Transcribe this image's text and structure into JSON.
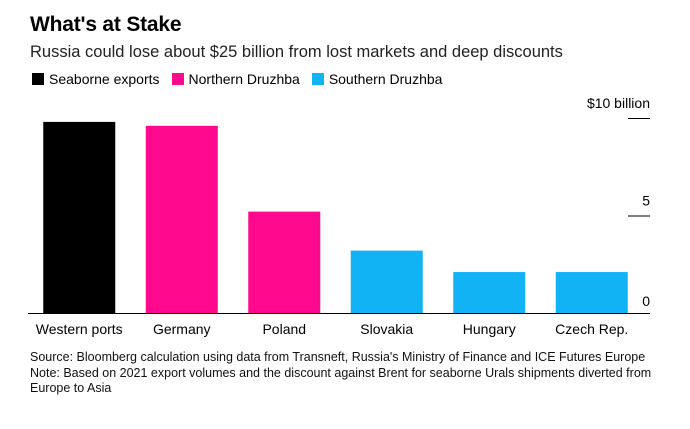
{
  "header": {
    "title": "What's at Stake",
    "subtitle": "Russia could lose about $25 billion from lost markets and deep discounts"
  },
  "legend": [
    {
      "label": "Seaborne exports",
      "color": "#000000"
    },
    {
      "label": "Northern Druzhba",
      "color": "#ff0a8f"
    },
    {
      "label": "Southern Druzhba",
      "color": "#12b3f5"
    }
  ],
  "chart_data": {
    "type": "bar",
    "title": "What's at Stake",
    "subtitle": "Russia could lose about $25 billion from lost markets and deep discounts",
    "categories": [
      "Western ports",
      "Germany",
      "Poland",
      "Slovakia",
      "Hungary",
      "Czech Rep."
    ],
    "values": [
      9.8,
      9.6,
      5.2,
      3.2,
      2.1,
      2.1
    ],
    "series_for_category": [
      "Seaborne exports",
      "Northern Druzhba",
      "Northern Druzhba",
      "Southern Druzhba",
      "Southern Druzhba",
      "Southern Druzhba"
    ],
    "colors": [
      "#000000",
      "#ff0a8f",
      "#ff0a8f",
      "#12b3f5",
      "#12b3f5",
      "#12b3f5"
    ],
    "ylim": [
      0,
      10
    ],
    "yticks": [
      0,
      5,
      10
    ],
    "ytick_labels": [
      "0",
      "5",
      "$10 billion"
    ],
    "y_axis_side": "right",
    "xlabel": "",
    "ylabel": "",
    "legend_placement": "top-left",
    "grid": false
  },
  "footer": {
    "source": "Source: Bloomberg calculation using data from Transneft, Russia's Ministry of Finance and ICE Futures Europe",
    "note": "Note: Based on 2021 export volumes and the discount against Brent for seaborne Urals shipments diverted from Europe to Asia"
  }
}
